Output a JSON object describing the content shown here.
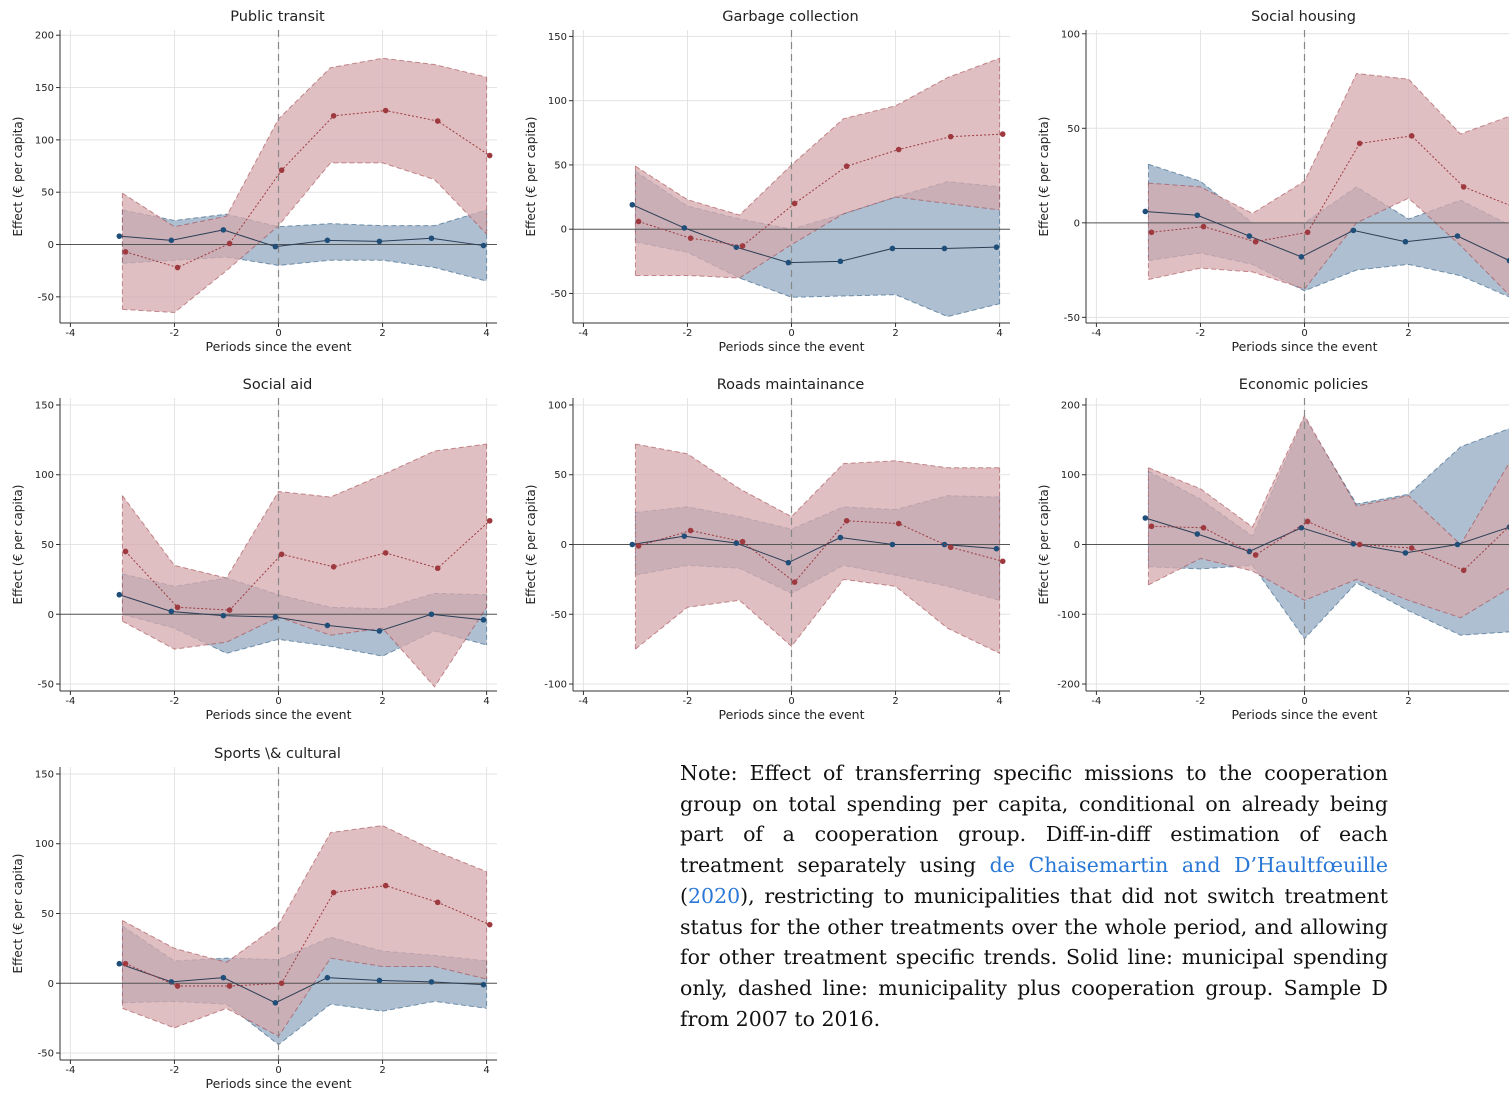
{
  "page": {
    "note": {
      "prefix": "Note:",
      "text_a": " Effect of transferring specific missions to the cooperation group on total spending per capita, conditional on already being part of a cooperation group.  Diff-in-diff estimation of each treatment separately using ",
      "citation": "de Chaisemartin and D’Haultfœuille",
      "text_b": " (",
      "citation_year": "2020",
      "text_c": "), restricting to municipalities that did not switch treatment status for the other treatments over the whole period, and allowing for other treatment specific trends. Solid line: municipal spending only, dashed line: municipality plus cooperation group. Sample D from 2007 to 2016."
    }
  },
  "colors": {
    "blue": "#1f4e79",
    "blue_fill": "#a9bccf",
    "red": "#9e3a3f",
    "red_fill": "#d4a9ad"
  },
  "chart_data": [
    {
      "type": "line",
      "title": "Public transit",
      "xlabel": "Periods since the event",
      "ylabel": "Effect (€ per capita)",
      "xlim": [
        -4.2,
        4.2
      ],
      "ylim": [
        -75,
        205
      ],
      "xticks": [
        -4,
        -2,
        0,
        2,
        4
      ],
      "yticks": [
        -50,
        0,
        50,
        100,
        150,
        200
      ],
      "event_line": 0,
      "grid": true,
      "series": [
        {
          "style": "solid",
          "x": [
            -3,
            -2,
            -1,
            0,
            1,
            2,
            3,
            4
          ],
          "y": [
            8,
            4,
            14,
            -2,
            4,
            3,
            6,
            -1
          ],
          "lower": [
            -18,
            -15,
            -12,
            -20,
            -15,
            -15,
            -22,
            -35
          ],
          "upper": [
            33,
            23,
            29,
            17,
            20,
            18,
            18,
            33
          ]
        },
        {
          "style": "dashed",
          "x": [
            -3,
            -2,
            -1,
            0,
            1,
            2,
            3,
            4
          ],
          "y": [
            -7,
            -22,
            1,
            71,
            123,
            128,
            118,
            85
          ],
          "lower": [
            -62,
            -65,
            -25,
            18,
            78,
            78,
            62,
            10
          ],
          "upper": [
            49,
            17,
            27,
            120,
            169,
            178,
            172,
            160
          ]
        }
      ]
    },
    {
      "type": "line",
      "title": "Garbage collection",
      "xlabel": "Periods since the event",
      "ylabel": "Effect (€ per capita)",
      "xlim": [
        -4.2,
        4.2
      ],
      "ylim": [
        -73,
        155
      ],
      "xticks": [
        -4,
        -2,
        0,
        2,
        4
      ],
      "yticks": [
        -50,
        0,
        50,
        100,
        150
      ],
      "event_line": 0,
      "grid": true,
      "series": [
        {
          "style": "solid",
          "x": [
            -3,
            -2,
            -1,
            0,
            1,
            2,
            3,
            4
          ],
          "y": [
            19,
            1,
            -14,
            -26,
            -25,
            -15,
            -15,
            -14
          ],
          "lower": [
            -10,
            -18,
            -38,
            -53,
            -52,
            -51,
            -68,
            -58
          ],
          "upper": [
            45,
            18,
            8,
            0,
            12,
            25,
            37,
            33
          ]
        },
        {
          "style": "dashed",
          "x": [
            -3,
            -2,
            -1,
            0,
            1,
            2,
            3,
            4
          ],
          "y": [
            6,
            -7,
            -13,
            20,
            49,
            62,
            72,
            74
          ],
          "lower": [
            -36,
            -36,
            -38,
            -12,
            12,
            25,
            20,
            15
          ],
          "upper": [
            49,
            23,
            11,
            50,
            86,
            96,
            118,
            133
          ]
        }
      ]
    },
    {
      "type": "line",
      "title": "Social housing",
      "xlabel": "Periods since the event",
      "ylabel": "Effect (€ per capita)",
      "xlim": [
        -4.2,
        4.2
      ],
      "ylim": [
        -53,
        102
      ],
      "xticks": [
        -4,
        -2,
        0,
        2,
        4
      ],
      "yticks": [
        -50,
        0,
        50,
        100
      ],
      "event_line": 0,
      "grid": true,
      "series": [
        {
          "style": "solid",
          "x": [
            -3,
            -2,
            -1,
            0,
            1,
            2,
            3,
            4
          ],
          "y": [
            6,
            4,
            -7,
            -18,
            -4,
            -10,
            -7,
            -20
          ],
          "lower": [
            -20,
            -16,
            -22,
            -36,
            -25,
            -22,
            -28,
            -40
          ],
          "upper": [
            31,
            22,
            0,
            0,
            19,
            2,
            12,
            -2
          ]
        },
        {
          "style": "dashed",
          "x": [
            -3,
            -2,
            -1,
            0,
            1,
            2,
            3,
            4
          ],
          "y": [
            -5,
            -2,
            -10,
            -5,
            42,
            46,
            19,
            8
          ],
          "lower": [
            -30,
            -24,
            -26,
            -35,
            0,
            13,
            -12,
            -40
          ],
          "upper": [
            21,
            19,
            5,
            22,
            79,
            76,
            47,
            57
          ]
        }
      ]
    },
    {
      "type": "line",
      "title": "Social aid",
      "xlabel": "Periods since the event",
      "ylabel": "Effect (€ per capita)",
      "xlim": [
        -4.2,
        4.2
      ],
      "ylim": [
        -55,
        155
      ],
      "xticks": [
        -4,
        -2,
        0,
        2,
        4
      ],
      "yticks": [
        -50,
        0,
        50,
        100,
        150
      ],
      "event_line": 0,
      "grid": true,
      "series": [
        {
          "style": "solid",
          "x": [
            -3,
            -2,
            -1,
            0,
            1,
            2,
            3,
            4
          ],
          "y": [
            14,
            2,
            -1,
            -2,
            -8,
            -12,
            0,
            -4
          ],
          "lower": [
            0,
            -10,
            -28,
            -18,
            -23,
            -30,
            -12,
            -22
          ],
          "upper": [
            29,
            20,
            26,
            14,
            5,
            4,
            15,
            14
          ]
        },
        {
          "style": "dashed",
          "x": [
            -3,
            -2,
            -1,
            0,
            1,
            2,
            3,
            4
          ],
          "y": [
            45,
            5,
            3,
            43,
            34,
            44,
            33,
            67
          ],
          "lower": [
            -5,
            -25,
            -20,
            -2,
            -15,
            -10,
            -52,
            5
          ],
          "upper": [
            85,
            35,
            26,
            88,
            84,
            100,
            117,
            122
          ]
        }
      ]
    },
    {
      "type": "line",
      "title": "Roads maintainance",
      "xlabel": "Periods since the event",
      "ylabel": "Effect (€ per capita)",
      "xlim": [
        -4.2,
        4.2
      ],
      "ylim": [
        -105,
        105
      ],
      "xticks": [
        -4,
        -2,
        0,
        2,
        4
      ],
      "yticks": [
        -100,
        -50,
        0,
        50,
        100
      ],
      "event_line": 0,
      "grid": true,
      "series": [
        {
          "style": "solid",
          "x": [
            -3,
            -2,
            -1,
            0,
            1,
            2,
            3,
            4
          ],
          "y": [
            0,
            6,
            1,
            -13,
            5,
            0,
            0,
            -3
          ],
          "lower": [
            -22,
            -15,
            -17,
            -35,
            -15,
            -22,
            -30,
            -40
          ],
          "upper": [
            23,
            27,
            20,
            11,
            27,
            25,
            35,
            34
          ]
        },
        {
          "style": "dashed",
          "x": [
            -3,
            -2,
            -1,
            0,
            1,
            2,
            3,
            4
          ],
          "y": [
            -1,
            10,
            2,
            -27,
            17,
            15,
            -2,
            -12
          ],
          "lower": [
            -75,
            -45,
            -40,
            -73,
            -25,
            -30,
            -60,
            -78
          ],
          "upper": [
            72,
            65,
            40,
            20,
            58,
            60,
            55,
            55
          ]
        }
      ]
    },
    {
      "type": "line",
      "title": "Economic policies",
      "xlabel": "Periods since the event",
      "ylabel": "Effect (€ per capita)",
      "xlim": [
        -4.2,
        4.2
      ],
      "ylim": [
        -210,
        210
      ],
      "xticks": [
        -4,
        -2,
        0,
        2,
        4
      ],
      "yticks": [
        -200,
        -100,
        0,
        100,
        200
      ],
      "event_line": 0,
      "grid": true,
      "series": [
        {
          "style": "solid",
          "x": [
            -3,
            -2,
            -1,
            0,
            1,
            2,
            3,
            4
          ],
          "y": [
            38,
            15,
            -10,
            24,
            1,
            -12,
            0,
            25
          ],
          "lower": [
            -32,
            -35,
            -30,
            -135,
            -55,
            -95,
            -130,
            -125
          ],
          "upper": [
            105,
            65,
            12,
            182,
            58,
            72,
            140,
            168
          ]
        },
        {
          "style": "dashed",
          "x": [
            -3,
            -2,
            -1,
            0,
            1,
            2,
            3,
            4
          ],
          "y": [
            26,
            24,
            -15,
            33,
            0,
            -5,
            -37,
            35
          ],
          "lower": [
            -58,
            -20,
            -38,
            -80,
            -50,
            -80,
            -105,
            -60
          ],
          "upper": [
            110,
            80,
            25,
            185,
            55,
            70,
            0,
            125
          ]
        }
      ]
    },
    {
      "type": "line",
      "title": "Sports \\& cultural",
      "xlabel": "Periods since the event",
      "ylabel": "Effect (€ per capita)",
      "xlim": [
        -4.2,
        4.2
      ],
      "ylim": [
        -55,
        155
      ],
      "xticks": [
        -4,
        -2,
        0,
        2,
        4
      ],
      "yticks": [
        -50,
        0,
        50,
        100,
        150
      ],
      "event_line": 0,
      "grid": true,
      "series": [
        {
          "style": "solid",
          "x": [
            -3,
            -2,
            -1,
            0,
            1,
            2,
            3,
            4
          ],
          "y": [
            14,
            1,
            4,
            -14,
            4,
            2,
            1,
            -1
          ],
          "lower": [
            -14,
            -13,
            -15,
            -44,
            -15,
            -20,
            -13,
            -18
          ],
          "upper": [
            41,
            16,
            18,
            17,
            33,
            23,
            20,
            16
          ]
        },
        {
          "style": "dashed",
          "x": [
            -3,
            -2,
            -1,
            0,
            1,
            2,
            3,
            4
          ],
          "y": [
            14,
            -2,
            -2,
            0,
            65,
            70,
            58,
            42
          ],
          "lower": [
            -18,
            -32,
            -18,
            -38,
            18,
            12,
            12,
            3
          ],
          "upper": [
            45,
            25,
            15,
            42,
            108,
            113,
            95,
            80
          ]
        }
      ]
    }
  ]
}
